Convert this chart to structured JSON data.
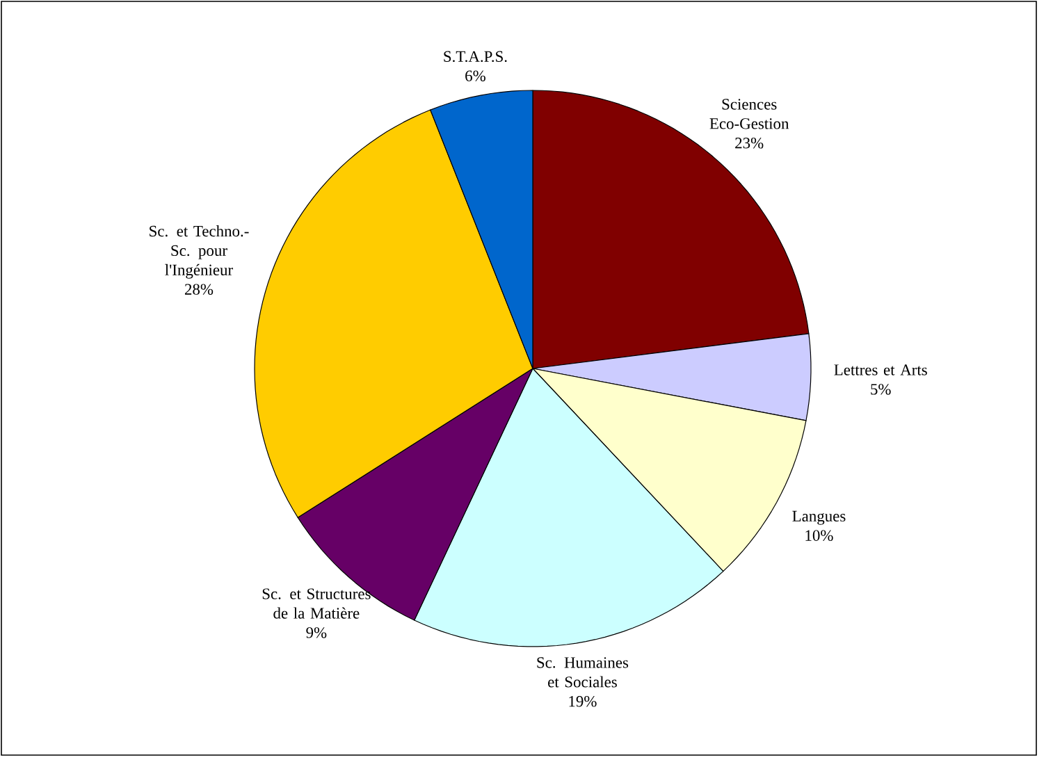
{
  "chart_data": {
    "type": "pie",
    "categories": [
      "Sciences Eco-Gestion",
      "Lettres et Arts",
      "Langues",
      "Sc. Humaines et Sociales",
      "Sc. et Structures de la Matière",
      "Sc. et Techno.-Sc. pour l'Ingénieur",
      "S.T.A.P.S."
    ],
    "values": [
      23,
      5,
      10,
      19,
      9,
      28,
      6
    ],
    "value_labels": [
      "23%",
      "5%",
      "10%",
      "19%",
      "9%",
      "28%",
      "6%"
    ],
    "colors": [
      "#800000",
      "#ccccff",
      "#ffffcc",
      "#ccffff",
      "#660066",
      "#ffcc00",
      "#0066cc"
    ]
  }
}
